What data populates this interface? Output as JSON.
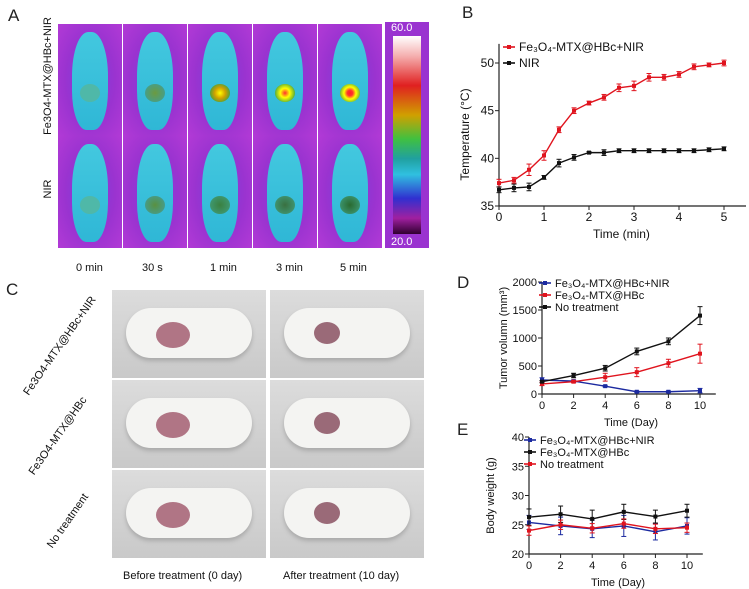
{
  "panels": {
    "a": "A",
    "b": "B",
    "c": "C",
    "d": "D",
    "e": "E"
  },
  "panel_a": {
    "rows": [
      "Fe3O4-MTX@HBc+NIR",
      "NIR"
    ],
    "times": [
      "0 min",
      "30 s",
      "1 min",
      "3 min",
      "5 min"
    ],
    "colorbar": {
      "max": "60.0",
      "min": "20.0"
    }
  },
  "panel_c": {
    "rows": [
      "Fe3O4-MTX@HBc+NIR",
      "Fe3O4-MTX@HBc",
      "No treatment"
    ],
    "columns": [
      "Before treatment (0 day)",
      "After treatment (10 day)"
    ]
  },
  "chart_data": [
    {
      "id": "B",
      "type": "line",
      "xlabel": "Time (min)",
      "ylabel": "Temperature (°C)",
      "xlim": [
        0,
        5
      ],
      "ylim": [
        35,
        52
      ],
      "xticks": [
        0,
        1,
        2,
        3,
        4,
        5
      ],
      "yticks": [
        35,
        40,
        45,
        50
      ],
      "legend": "top-left",
      "x": [
        0,
        0.333,
        0.667,
        1,
        1.333,
        1.667,
        2,
        2.333,
        2.667,
        3,
        3.333,
        3.667,
        4,
        4.333,
        4.667,
        5
      ],
      "series": [
        {
          "name": "Fe3O4-MTX@HBc+NIR",
          "color": "#e0141e",
          "values": [
            37.4,
            37.7,
            38.8,
            40.3,
            43.0,
            45.0,
            45.8,
            46.4,
            47.4,
            47.6,
            48.5,
            48.5,
            48.8,
            49.6,
            49.8,
            50.0
          ],
          "err": [
            0.4,
            0.3,
            0.6,
            0.5,
            0.3,
            0.3,
            0.2,
            0.3,
            0.4,
            0.5,
            0.4,
            0.3,
            0.3,
            0.3,
            0.2,
            0.3
          ]
        },
        {
          "name": "NIR",
          "color": "#111111",
          "values": [
            36.7,
            36.9,
            37.0,
            38.0,
            39.5,
            40.1,
            40.6,
            40.6,
            40.8,
            40.8,
            40.8,
            40.8,
            40.8,
            40.8,
            40.9,
            41.0
          ],
          "err": [
            0.3,
            0.4,
            0.4,
            0.2,
            0.4,
            0.3,
            0.1,
            0.3,
            0.2,
            0.2,
            0.2,
            0.2,
            0.2,
            0.2,
            0.2,
            0.2
          ]
        }
      ]
    },
    {
      "id": "D",
      "type": "line",
      "xlabel": "Time (Day)",
      "ylabel": "Tumor volumn (mm3)",
      "xlim": [
        0,
        11
      ],
      "ylim": [
        0,
        2000
      ],
      "xticks": [
        0,
        2,
        4,
        6,
        8,
        10
      ],
      "yticks": [
        0,
        500,
        1000,
        1500,
        2000
      ],
      "legend": "top-right",
      "x": [
        0,
        2,
        4,
        6,
        8,
        10
      ],
      "series": [
        {
          "name": "Fe3O4-MTX@HBc+NIR",
          "color": "#1c2aa0",
          "values": [
            250,
            230,
            140,
            40,
            40,
            60
          ],
          "err": [
            40,
            20,
            15,
            15,
            15,
            40
          ]
        },
        {
          "name": "Fe3O4-MTX@HBc",
          "color": "#e0141e",
          "values": [
            180,
            220,
            300,
            390,
            550,
            720
          ],
          "err": [
            30,
            20,
            70,
            80,
            70,
            170
          ]
        },
        {
          "name": "No treatment",
          "color": "#111111",
          "values": [
            220,
            330,
            460,
            760,
            940,
            1400
          ],
          "err": [
            20,
            40,
            50,
            60,
            60,
            160
          ]
        }
      ]
    },
    {
      "id": "E",
      "type": "line",
      "xlabel": "Time (Day)",
      "ylabel": "Body weight (g)",
      "xlim": [
        0,
        11
      ],
      "ylim": [
        20,
        40
      ],
      "xticks": [
        0,
        2,
        4,
        6,
        8,
        10
      ],
      "yticks": [
        20,
        25,
        30,
        35,
        40
      ],
      "legend": "top-right",
      "x": [
        0,
        2,
        4,
        6,
        8,
        10
      ],
      "series": [
        {
          "name": "Fe3O4-MTX@HBc+NIR",
          "color": "#1c2aa0",
          "values": [
            25.4,
            24.8,
            24.3,
            24.8,
            23.8,
            24.8
          ],
          "err": [
            1.2,
            1.5,
            1.5,
            1.8,
            1.4,
            1.4
          ]
        },
        {
          "name": "Fe3O4-MTX@HBc",
          "color": "#111111",
          "values": [
            26.3,
            26.8,
            26.0,
            27.2,
            26.4,
            27.4
          ],
          "err": [
            1.4,
            1.4,
            1.5,
            1.3,
            1.1,
            1.1
          ]
        },
        {
          "name": "No treatment",
          "color": "#e0141e",
          "values": [
            24.0,
            25.0,
            24.4,
            25.2,
            24.3,
            24.5
          ],
          "err": [
            0.8,
            0.8,
            0.8,
            0.8,
            0.8,
            0.8
          ]
        }
      ]
    }
  ]
}
